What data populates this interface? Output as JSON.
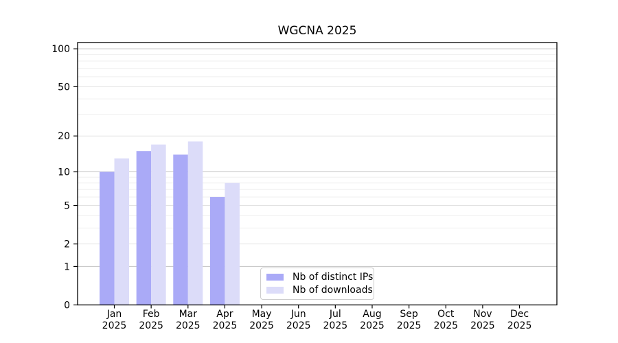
{
  "page": {
    "background": "#ffffff"
  },
  "chart_data": {
    "type": "bar",
    "title": "WGCNA 2025",
    "categories": [
      "Jan",
      "Feb",
      "Mar",
      "Apr",
      "May",
      "Jun",
      "Jul",
      "Aug",
      "Sep",
      "Oct",
      "Nov",
      "Dec"
    ],
    "year_suffix": "2025",
    "series": [
      {
        "name": "Nb of distinct IPs",
        "color": "#aaaaf7",
        "values": [
          10,
          15,
          14,
          6,
          0,
          0,
          0,
          0,
          0,
          0,
          0,
          0
        ]
      },
      {
        "name": "Nb of downloads",
        "color": "#dcdcf9",
        "values": [
          13,
          17,
          18,
          8,
          0,
          0,
          0,
          0,
          0,
          0,
          0,
          0
        ]
      }
    ],
    "xlabel": "",
    "ylabel": "",
    "y_scale": "log1p",
    "y_ticks": [
      0,
      1,
      2,
      5,
      10,
      20,
      50,
      100
    ],
    "y_tick_labels": [
      "0",
      "1",
      "2",
      "5",
      "10",
      "20",
      "50",
      "100"
    ],
    "y_minor_gridlines": [
      3,
      4,
      6,
      7,
      8,
      9,
      30,
      40,
      60,
      70,
      80,
      90
    ],
    "ylim": [
      0,
      113
    ],
    "grid": true,
    "legend_position": "lower center inside",
    "colors": {
      "axis": "#000000",
      "grid_major_decade": "#c2c2c2",
      "grid_major": "#e2e2e2",
      "grid_minor": "#efefef",
      "legend_border": "#cccccc",
      "text": "#000000"
    }
  }
}
